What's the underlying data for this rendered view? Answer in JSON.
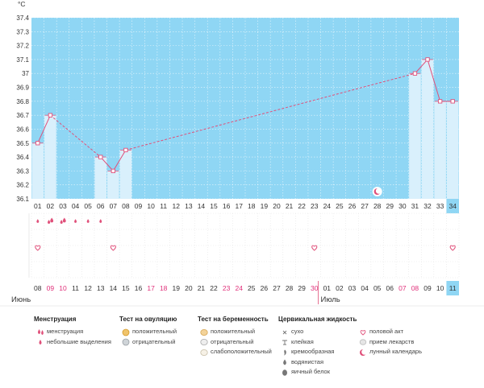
{
  "chart_data": {
    "type": "bar",
    "ylabel": "°C",
    "ylim": [
      36.1,
      37.4
    ],
    "yticks": [
      "37.4",
      "37.3",
      "37.2",
      "37.1",
      "37",
      "36.9",
      "36.8",
      "36.7",
      "36.6",
      "36.5",
      "36.4",
      "36.3",
      "36.2",
      "36.1"
    ],
    "cycle_days": [
      "01",
      "02",
      "03",
      "04",
      "05",
      "06",
      "07",
      "08",
      "09",
      "10",
      "11",
      "12",
      "13",
      "14",
      "15",
      "16",
      "17",
      "18",
      "19",
      "20",
      "21",
      "22",
      "23",
      "24",
      "25",
      "26",
      "27",
      "28",
      "29",
      "30",
      "31",
      "32",
      "33",
      "34"
    ],
    "current_day_index": 33,
    "dates": [
      "08",
      "09",
      "10",
      "11",
      "12",
      "13",
      "14",
      "15",
      "16",
      "17",
      "18",
      "19",
      "20",
      "21",
      "22",
      "23",
      "24",
      "25",
      "26",
      "27",
      "28",
      "29",
      "30",
      "01",
      "02",
      "03",
      "04",
      "05",
      "06",
      "07",
      "08",
      "09",
      "10",
      "11"
    ],
    "red_dates": [
      1,
      2,
      9,
      10,
      15,
      16,
      22,
      29,
      30
    ],
    "months": [
      {
        "label": "Июнь",
        "index": 0
      },
      {
        "label": "Июль",
        "index": 23
      }
    ],
    "temperatures": [
      {
        "day": 1,
        "value": 36.5
      },
      {
        "day": 2,
        "value": 36.7
      },
      {
        "day": 6,
        "value": 36.4
      },
      {
        "day": 7,
        "value": 36.3
      },
      {
        "day": 8,
        "value": 36.45
      },
      {
        "day": 31,
        "value": 37.0
      },
      {
        "day": 32,
        "value": 37.1
      },
      {
        "day": 33,
        "value": 36.8
      },
      {
        "day": 34,
        "value": 36.8
      }
    ],
    "background_color": "#8fd6f4",
    "bar_color": "#d9f0fc",
    "line_color": "#e0507a",
    "menstruation_heavy_days": [
      2,
      3
    ],
    "menstruation_light_days": [
      1,
      4,
      5,
      6
    ],
    "sex_days": [
      1,
      7,
      23,
      34
    ],
    "moon_days": [
      28
    ]
  },
  "legend": {
    "groups": [
      {
        "title": "Менструация",
        "items": [
          {
            "icon": "heavy-drop-icon",
            "label": "менструация"
          },
          {
            "icon": "light-drop-icon",
            "label": "небольшие выделения"
          }
        ]
      },
      {
        "title": "Тест на овуляцию",
        "items": [
          {
            "icon": "ovulation-positive-icon",
            "label": "положительный"
          },
          {
            "icon": "ovulation-negative-icon",
            "label": "отрицательный"
          }
        ]
      },
      {
        "title": "Тест на беременность",
        "items": [
          {
            "icon": "pregnancy-positive-icon",
            "label": "положительный"
          },
          {
            "icon": "pregnancy-negative-icon",
            "label": "отрицательный"
          },
          {
            "icon": "pregnancy-weak-icon",
            "label": "слабоположительный"
          }
        ]
      },
      {
        "title": "Цервикальная жидкость",
        "items": [
          {
            "icon": "dry-icon",
            "label": "сухо"
          },
          {
            "icon": "sticky-icon",
            "label": "клейкая"
          },
          {
            "icon": "creamy-icon",
            "label": "кремообразная"
          },
          {
            "icon": "watery-icon",
            "label": "водянистая"
          },
          {
            "icon": "eggwhite-icon",
            "label": "яичный белок"
          }
        ]
      },
      {
        "title": "",
        "items": [
          {
            "icon": "heart-icon",
            "label": "половой акт"
          },
          {
            "icon": "pill-icon",
            "label": "прием лекарств"
          },
          {
            "icon": "moon-icon",
            "label": "лунный календарь"
          }
        ]
      }
    ]
  }
}
